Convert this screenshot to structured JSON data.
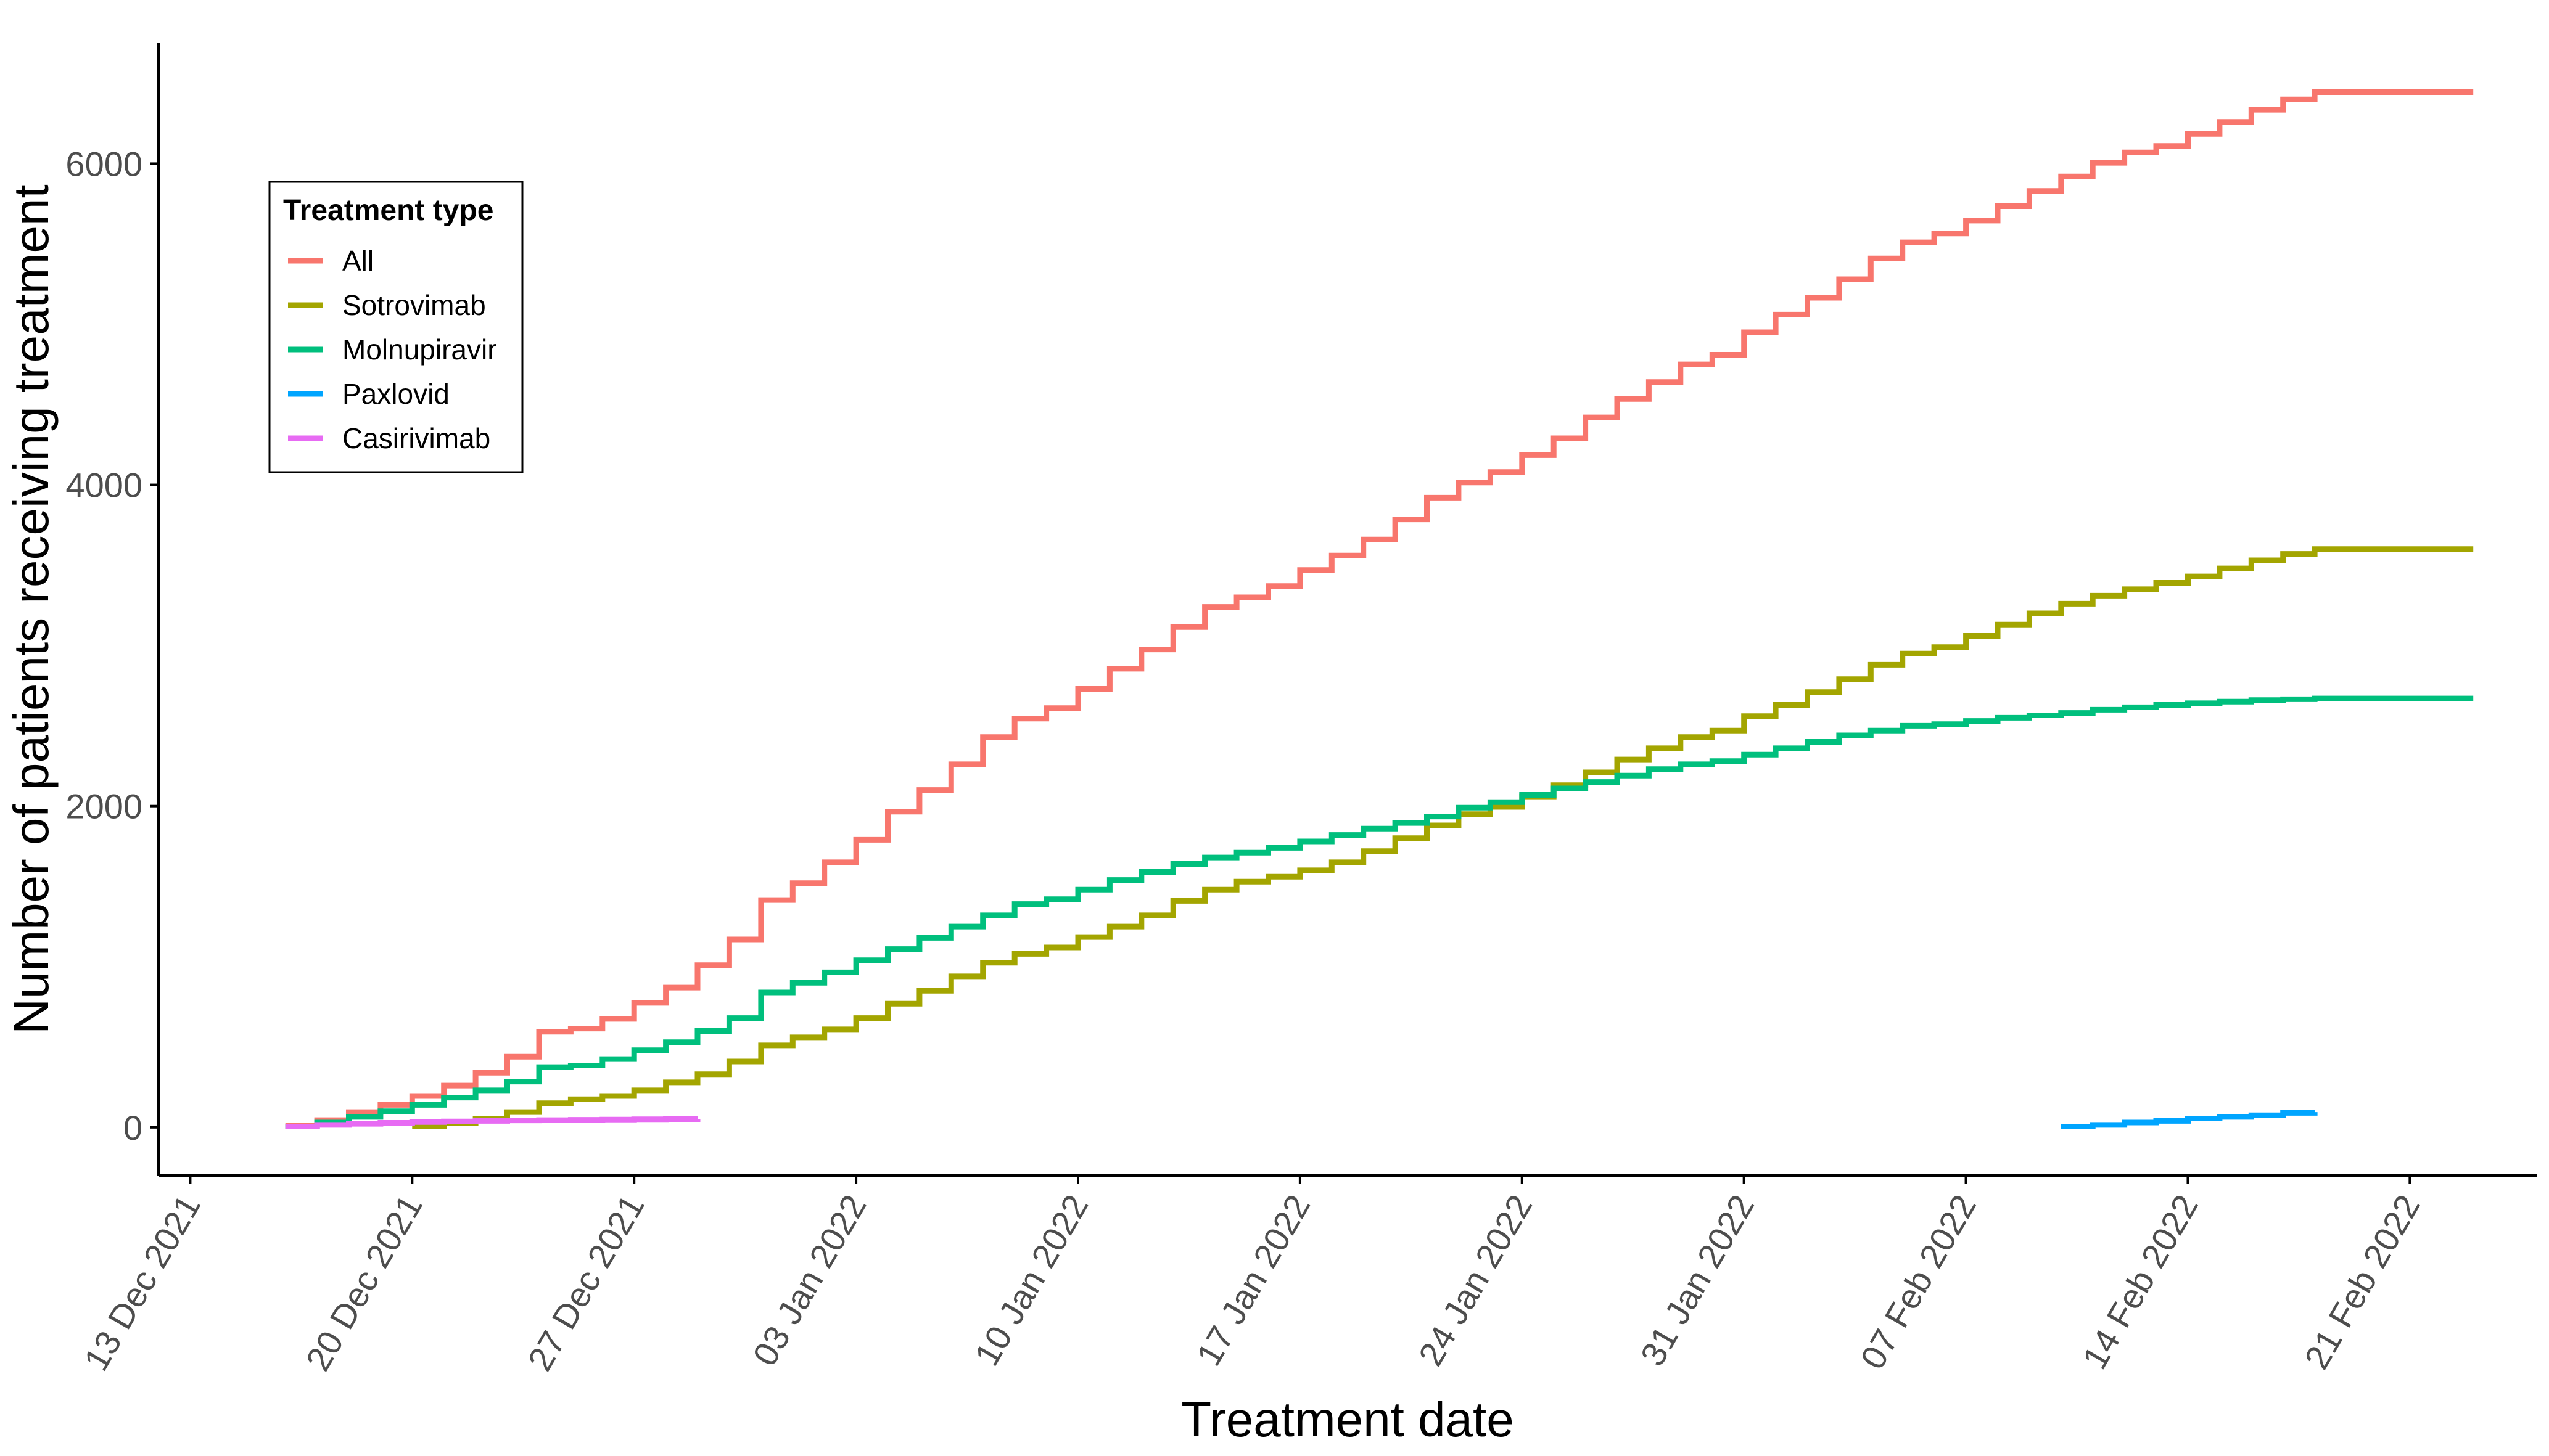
{
  "chart_data": {
    "type": "line",
    "step": true,
    "xlabel": "Treatment date",
    "ylabel": "Number of patients receiving treatment",
    "x_type": "date",
    "x_ticks": [
      "2021-12-13",
      "2021-12-20",
      "2021-12-27",
      "2022-01-03",
      "2022-01-10",
      "2022-01-17",
      "2022-01-24",
      "2022-01-31",
      "2022-02-07",
      "2022-02-14",
      "2022-02-21"
    ],
    "x_tick_labels": [
      "13 Dec 2021",
      "20 Dec 2021",
      "27 Dec 2021",
      "03 Jan 2022",
      "10 Jan 2022",
      "17 Jan 2022",
      "24 Jan 2022",
      "31 Jan 2022",
      "07 Feb 2022",
      "14 Feb 2022",
      "21 Feb 2022"
    ],
    "xlim": [
      "2021-12-12",
      "2022-02-25"
    ],
    "y_ticks": [
      0,
      2000,
      4000,
      6000
    ],
    "y_tick_labels": [
      "0",
      "2000",
      "4000",
      "6000"
    ],
    "ylim": [
      -300,
      6750
    ],
    "grid": false,
    "legend": {
      "title": "Treatment type",
      "position": "top-left, inside plot"
    },
    "series": [
      {
        "name": "All",
        "color": "#F8766D",
        "points": [
          [
            "2021-12-16",
            10
          ],
          [
            "2021-12-17",
            45
          ],
          [
            "2021-12-18",
            95
          ],
          [
            "2021-12-19",
            140
          ],
          [
            "2021-12-20",
            195
          ],
          [
            "2021-12-21",
            260
          ],
          [
            "2021-12-22",
            340
          ],
          [
            "2021-12-23",
            440
          ],
          [
            "2021-12-24",
            595
          ],
          [
            "2021-12-25",
            615
          ],
          [
            "2021-12-26",
            675
          ],
          [
            "2021-12-27",
            775
          ],
          [
            "2021-12-28",
            870
          ],
          [
            "2021-12-29",
            1010
          ],
          [
            "2021-12-30",
            1170
          ],
          [
            "2021-12-31",
            1415
          ],
          [
            "2022-01-01",
            1520
          ],
          [
            "2022-01-02",
            1650
          ],
          [
            "2022-01-03",
            1790
          ],
          [
            "2022-01-04",
            1965
          ],
          [
            "2022-01-05",
            2100
          ],
          [
            "2022-01-06",
            2260
          ],
          [
            "2022-01-07",
            2430
          ],
          [
            "2022-01-08",
            2545
          ],
          [
            "2022-01-09",
            2610
          ],
          [
            "2022-01-10",
            2730
          ],
          [
            "2022-01-11",
            2855
          ],
          [
            "2022-01-12",
            2975
          ],
          [
            "2022-01-13",
            3115
          ],
          [
            "2022-01-14",
            3240
          ],
          [
            "2022-01-15",
            3300
          ],
          [
            "2022-01-16",
            3370
          ],
          [
            "2022-01-17",
            3470
          ],
          [
            "2022-01-18",
            3560
          ],
          [
            "2022-01-19",
            3660
          ],
          [
            "2022-01-20",
            3785
          ],
          [
            "2022-01-21",
            3920
          ],
          [
            "2022-01-22",
            4015
          ],
          [
            "2022-01-23",
            4080
          ],
          [
            "2022-01-24",
            4185
          ],
          [
            "2022-01-25",
            4290
          ],
          [
            "2022-01-26",
            4420
          ],
          [
            "2022-01-27",
            4535
          ],
          [
            "2022-01-28",
            4640
          ],
          [
            "2022-01-29",
            4750
          ],
          [
            "2022-01-30",
            4810
          ],
          [
            "2022-01-31",
            4950
          ],
          [
            "2022-02-01",
            5060
          ],
          [
            "2022-02-02",
            5165
          ],
          [
            "2022-02-03",
            5280
          ],
          [
            "2022-02-04",
            5410
          ],
          [
            "2022-02-05",
            5510
          ],
          [
            "2022-02-06",
            5565
          ],
          [
            "2022-02-07",
            5645
          ],
          [
            "2022-02-08",
            5735
          ],
          [
            "2022-02-09",
            5830
          ],
          [
            "2022-02-10",
            5920
          ],
          [
            "2022-02-11",
            6005
          ],
          [
            "2022-02-12",
            6070
          ],
          [
            "2022-02-13",
            6110
          ],
          [
            "2022-02-14",
            6185
          ],
          [
            "2022-02-15",
            6260
          ],
          [
            "2022-02-16",
            6335
          ],
          [
            "2022-02-17",
            6400
          ],
          [
            "2022-02-18",
            6445
          ],
          [
            "2022-02-19",
            6445
          ],
          [
            "2022-02-20",
            6445
          ],
          [
            "2022-02-21",
            6445
          ],
          [
            "2022-02-22",
            6445
          ],
          [
            "2022-02-23",
            6445
          ]
        ]
      },
      {
        "name": "Sotrovimab",
        "color": "#A3A500",
        "points": [
          [
            "2021-12-20",
            5
          ],
          [
            "2021-12-21",
            25
          ],
          [
            "2021-12-22",
            55
          ],
          [
            "2021-12-23",
            95
          ],
          [
            "2021-12-24",
            150
          ],
          [
            "2021-12-25",
            175
          ],
          [
            "2021-12-26",
            195
          ],
          [
            "2021-12-27",
            230
          ],
          [
            "2021-12-28",
            280
          ],
          [
            "2021-12-29",
            330
          ],
          [
            "2021-12-30",
            410
          ],
          [
            "2021-12-31",
            510
          ],
          [
            "2022-01-01",
            560
          ],
          [
            "2022-01-02",
            610
          ],
          [
            "2022-01-03",
            680
          ],
          [
            "2022-01-04",
            770
          ],
          [
            "2022-01-05",
            850
          ],
          [
            "2022-01-06",
            940
          ],
          [
            "2022-01-07",
            1025
          ],
          [
            "2022-01-08",
            1080
          ],
          [
            "2022-01-09",
            1120
          ],
          [
            "2022-01-10",
            1185
          ],
          [
            "2022-01-11",
            1250
          ],
          [
            "2022-01-12",
            1320
          ],
          [
            "2022-01-13",
            1410
          ],
          [
            "2022-01-14",
            1480
          ],
          [
            "2022-01-15",
            1530
          ],
          [
            "2022-01-16",
            1560
          ],
          [
            "2022-01-17",
            1600
          ],
          [
            "2022-01-18",
            1650
          ],
          [
            "2022-01-19",
            1720
          ],
          [
            "2022-01-20",
            1800
          ],
          [
            "2022-01-21",
            1880
          ],
          [
            "2022-01-22",
            1950
          ],
          [
            "2022-01-23",
            1995
          ],
          [
            "2022-01-24",
            2060
          ],
          [
            "2022-01-25",
            2130
          ],
          [
            "2022-01-26",
            2210
          ],
          [
            "2022-01-27",
            2290
          ],
          [
            "2022-01-28",
            2360
          ],
          [
            "2022-01-29",
            2430
          ],
          [
            "2022-01-30",
            2470
          ],
          [
            "2022-01-31",
            2560
          ],
          [
            "2022-02-01",
            2630
          ],
          [
            "2022-02-02",
            2710
          ],
          [
            "2022-02-03",
            2790
          ],
          [
            "2022-02-04",
            2880
          ],
          [
            "2022-02-05",
            2950
          ],
          [
            "2022-02-06",
            2990
          ],
          [
            "2022-02-07",
            3060
          ],
          [
            "2022-02-08",
            3130
          ],
          [
            "2022-02-09",
            3200
          ],
          [
            "2022-02-10",
            3260
          ],
          [
            "2022-02-11",
            3310
          ],
          [
            "2022-02-12",
            3350
          ],
          [
            "2022-02-13",
            3390
          ],
          [
            "2022-02-14",
            3430
          ],
          [
            "2022-02-15",
            3480
          ],
          [
            "2022-02-16",
            3530
          ],
          [
            "2022-02-17",
            3570
          ],
          [
            "2022-02-18",
            3600
          ],
          [
            "2022-02-19",
            3600
          ],
          [
            "2022-02-20",
            3600
          ],
          [
            "2022-02-21",
            3600
          ],
          [
            "2022-02-22",
            3600
          ],
          [
            "2022-02-23",
            3600
          ]
        ]
      },
      {
        "name": "Molnupiravir",
        "color": "#00BF7D",
        "points": [
          [
            "2021-12-16",
            5
          ],
          [
            "2021-12-17",
            30
          ],
          [
            "2021-12-18",
            65
          ],
          [
            "2021-12-19",
            100
          ],
          [
            "2021-12-20",
            140
          ],
          [
            "2021-12-21",
            185
          ],
          [
            "2021-12-22",
            230
          ],
          [
            "2021-12-23",
            285
          ],
          [
            "2021-12-24",
            375
          ],
          [
            "2021-12-25",
            385
          ],
          [
            "2021-12-26",
            425
          ],
          [
            "2021-12-27",
            480
          ],
          [
            "2021-12-28",
            530
          ],
          [
            "2021-12-29",
            600
          ],
          [
            "2021-12-30",
            680
          ],
          [
            "2021-12-31",
            840
          ],
          [
            "2022-01-01",
            900
          ],
          [
            "2022-01-02",
            965
          ],
          [
            "2022-01-03",
            1040
          ],
          [
            "2022-01-04",
            1110
          ],
          [
            "2022-01-05",
            1180
          ],
          [
            "2022-01-06",
            1250
          ],
          [
            "2022-01-07",
            1320
          ],
          [
            "2022-01-08",
            1390
          ],
          [
            "2022-01-09",
            1420
          ],
          [
            "2022-01-10",
            1480
          ],
          [
            "2022-01-11",
            1540
          ],
          [
            "2022-01-12",
            1590
          ],
          [
            "2022-01-13",
            1640
          ],
          [
            "2022-01-14",
            1680
          ],
          [
            "2022-01-15",
            1710
          ],
          [
            "2022-01-16",
            1740
          ],
          [
            "2022-01-17",
            1780
          ],
          [
            "2022-01-18",
            1820
          ],
          [
            "2022-01-19",
            1860
          ],
          [
            "2022-01-20",
            1895
          ],
          [
            "2022-01-21",
            1935
          ],
          [
            "2022-01-22",
            1990
          ],
          [
            "2022-01-23",
            2025
          ],
          [
            "2022-01-24",
            2070
          ],
          [
            "2022-01-25",
            2110
          ],
          [
            "2022-01-26",
            2150
          ],
          [
            "2022-01-27",
            2190
          ],
          [
            "2022-01-28",
            2230
          ],
          [
            "2022-01-29",
            2260
          ],
          [
            "2022-01-30",
            2280
          ],
          [
            "2022-01-31",
            2320
          ],
          [
            "2022-02-01",
            2360
          ],
          [
            "2022-02-02",
            2400
          ],
          [
            "2022-02-03",
            2440
          ],
          [
            "2022-02-04",
            2470
          ],
          [
            "2022-02-05",
            2500
          ],
          [
            "2022-02-06",
            2510
          ],
          [
            "2022-02-07",
            2530
          ],
          [
            "2022-02-08",
            2550
          ],
          [
            "2022-02-09",
            2565
          ],
          [
            "2022-02-10",
            2580
          ],
          [
            "2022-02-11",
            2600
          ],
          [
            "2022-02-12",
            2615
          ],
          [
            "2022-02-13",
            2630
          ],
          [
            "2022-02-14",
            2640
          ],
          [
            "2022-02-15",
            2650
          ],
          [
            "2022-02-16",
            2660
          ],
          [
            "2022-02-17",
            2665
          ],
          [
            "2022-02-18",
            2670
          ],
          [
            "2022-02-19",
            2670
          ],
          [
            "2022-02-20",
            2670
          ],
          [
            "2022-02-21",
            2670
          ],
          [
            "2022-02-22",
            2670
          ],
          [
            "2022-02-23",
            2670
          ]
        ]
      },
      {
        "name": "Paxlovid",
        "color": "#00A5FF",
        "points": [
          [
            "2022-02-10",
            5
          ],
          [
            "2022-02-11",
            15
          ],
          [
            "2022-02-12",
            30
          ],
          [
            "2022-02-13",
            40
          ],
          [
            "2022-02-14",
            55
          ],
          [
            "2022-02-15",
            65
          ],
          [
            "2022-02-16",
            75
          ],
          [
            "2022-02-17",
            90
          ],
          [
            "2022-02-18",
            95
          ]
        ]
      },
      {
        "name": "Casirivimab",
        "color": "#E76BF3",
        "points": [
          [
            "2021-12-16",
            5
          ],
          [
            "2021-12-17",
            15
          ],
          [
            "2021-12-18",
            22
          ],
          [
            "2021-12-19",
            28
          ],
          [
            "2021-12-20",
            33
          ],
          [
            "2021-12-21",
            37
          ],
          [
            "2021-12-22",
            40
          ],
          [
            "2021-12-23",
            43
          ],
          [
            "2021-12-24",
            45
          ],
          [
            "2021-12-25",
            47
          ],
          [
            "2021-12-26",
            48
          ],
          [
            "2021-12-27",
            50
          ],
          [
            "2021-12-28",
            51
          ],
          [
            "2021-12-29",
            52
          ]
        ]
      }
    ]
  }
}
